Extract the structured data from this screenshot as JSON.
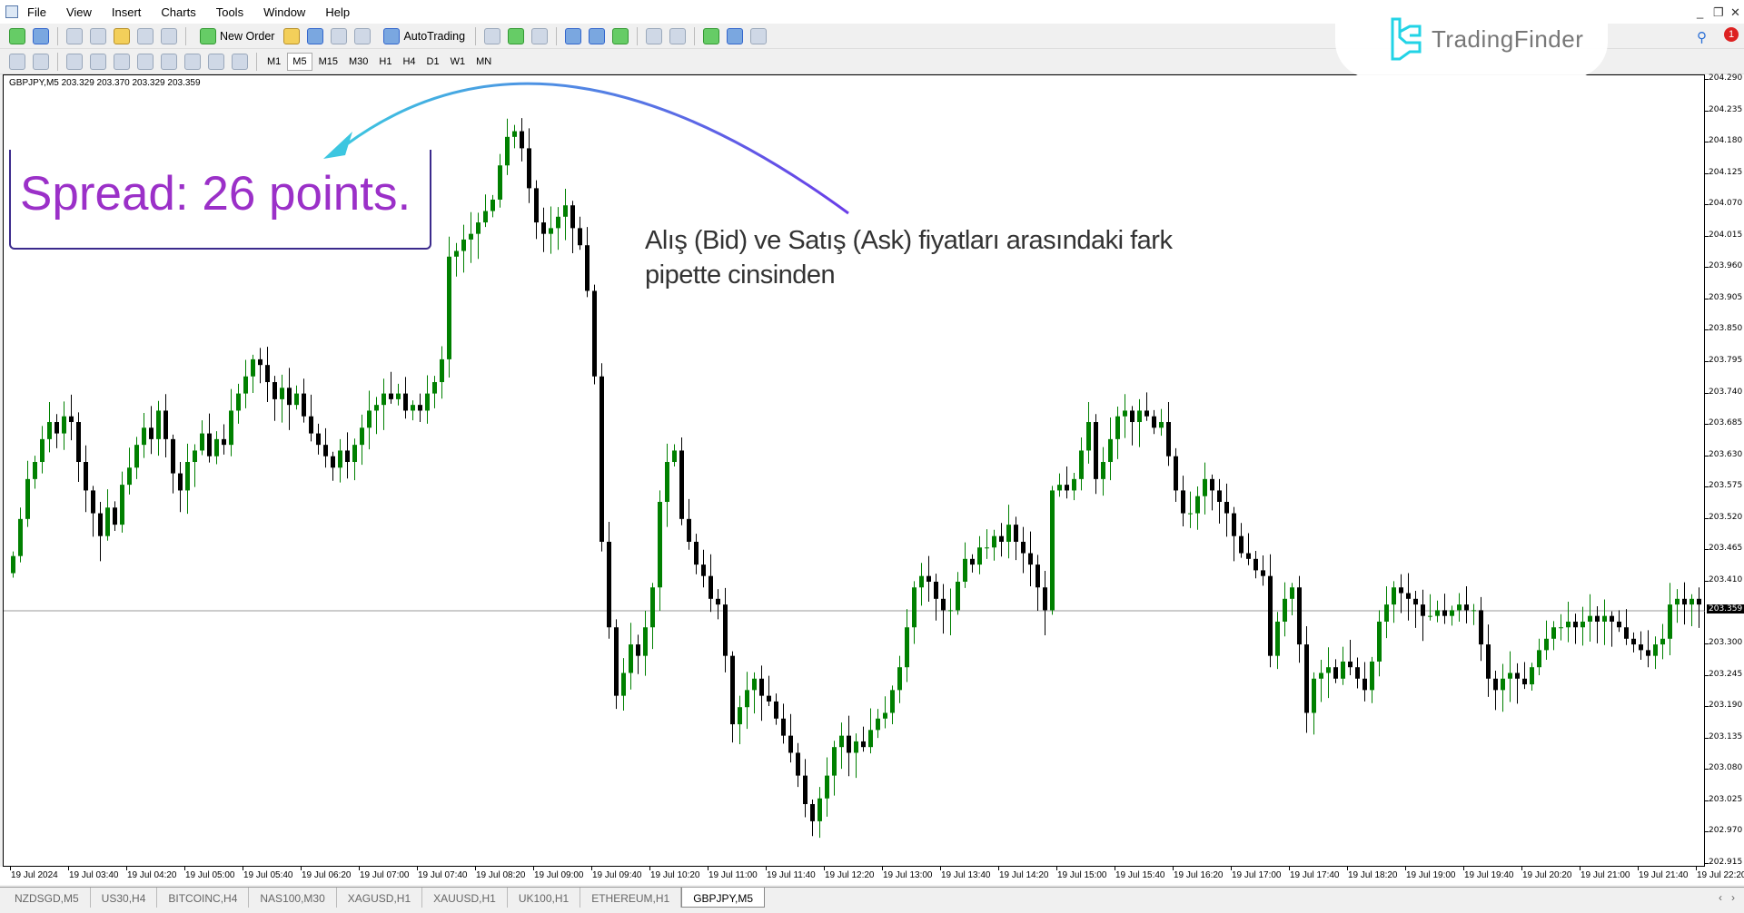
{
  "menu": {
    "items": [
      "File",
      "View",
      "Insert",
      "Charts",
      "Tools",
      "Window",
      "Help"
    ]
  },
  "toolbar": {
    "new_order": "New Order",
    "auto_trading": "AutoTrading",
    "timeframes": [
      "M1",
      "M5",
      "M15",
      "M30",
      "H1",
      "H4",
      "D1",
      "W1",
      "MN"
    ],
    "active_timeframe": "M5"
  },
  "logo": {
    "text": "TradingFinder",
    "color": "#22d3e6"
  },
  "notifications": {
    "count": "1"
  },
  "chart": {
    "info": "GBPJPY,M5  203.329 203.370 203.329 203.359"
  },
  "annotation": {
    "spread": "Spread: 26 points.",
    "note_line1": "Alış (Bid) ve Satış (Ask) fiyatları arasındaki fark",
    "note_line2": "pipette cinsinden",
    "spread_color": "#9b30c8"
  },
  "tabs": [
    {
      "label": "NZDSGD,M5"
    },
    {
      "label": "US30,H4"
    },
    {
      "label": "BITCOINC,H4"
    },
    {
      "label": "NAS100,M30"
    },
    {
      "label": "XAGUSD,H1"
    },
    {
      "label": "XAUUSD,H1"
    },
    {
      "label": "UK100,H1"
    },
    {
      "label": "ETHEREUM,H1"
    },
    {
      "label": "GBPJPY,M5",
      "active": true
    }
  ],
  "chart_data": {
    "type": "candlestick",
    "symbol": "GBPJPY",
    "timeframe": "M5",
    "ylim": [
      202.915,
      204.29
    ],
    "yticks": [
      "204.290",
      "204.235",
      "204.180",
      "204.125",
      "204.070",
      "204.015",
      "203.960",
      "203.905",
      "203.850",
      "203.795",
      "203.740",
      "203.685",
      "203.630",
      "203.575",
      "203.520",
      "203.465",
      "203.410",
      "203.359",
      "203.300",
      "203.245",
      "203.190",
      "203.135",
      "203.080",
      "203.025",
      "202.970",
      "202.915"
    ],
    "current_price": "203.359",
    "xticks": [
      "19 Jul 2024",
      "19 Jul 03:40",
      "19 Jul 04:20",
      "19 Jul 05:00",
      "19 Jul 05:40",
      "19 Jul 06:20",
      "19 Jul 07:00",
      "19 Jul 07:40",
      "19 Jul 08:20",
      "19 Jul 09:00",
      "19 Jul 09:40",
      "19 Jul 10:20",
      "19 Jul 11:00",
      "19 Jul 11:40",
      "19 Jul 12:20",
      "19 Jul 13:00",
      "19 Jul 13:40",
      "19 Jul 14:20",
      "19 Jul 15:00",
      "19 Jul 15:40",
      "19 Jul 16:20",
      "19 Jul 17:00",
      "19 Jul 17:40",
      "19 Jul 18:20",
      "19 Jul 19:00",
      "19 Jul 19:40",
      "19 Jul 20:20",
      "19 Jul 21:00",
      "19 Jul 21:40",
      "19 Jul 22:20"
    ],
    "bull_color": "#008000",
    "bear_color": "#000000",
    "close": [
      203.455,
      203.52,
      203.59,
      203.62,
      203.66,
      203.69,
      203.67,
      203.7,
      203.69,
      203.62,
      203.57,
      203.53,
      203.49,
      203.54,
      203.51,
      203.58,
      203.61,
      203.65,
      203.68,
      203.66,
      203.71,
      203.66,
      203.6,
      203.57,
      203.62,
      203.64,
      203.67,
      203.63,
      203.66,
      203.65,
      203.71,
      203.74,
      203.77,
      203.8,
      203.79,
      203.76,
      203.73,
      203.75,
      203.72,
      203.74,
      203.7,
      203.67,
      203.65,
      203.63,
      203.61,
      203.64,
      203.62,
      203.65,
      203.68,
      203.71,
      203.72,
      203.74,
      203.73,
      203.74,
      203.71,
      203.72,
      203.71,
      203.74,
      203.76,
      203.8,
      203.98,
      203.99,
      204.01,
      204.02,
      204.04,
      204.06,
      204.08,
      204.14,
      204.19,
      204.2,
      204.17,
      204.1,
      204.04,
      204.02,
      204.03,
      204.05,
      204.07,
      204.03,
      204.0,
      203.92,
      203.77,
      203.48,
      203.33,
      203.21,
      203.25,
      203.3,
      203.28,
      203.33,
      203.4,
      203.55,
      203.62,
      203.64,
      203.52,
      203.48,
      203.44,
      203.42,
      203.38,
      203.37,
      203.28,
      203.16,
      203.19,
      203.22,
      203.24,
      203.21,
      203.2,
      203.17,
      203.14,
      203.11,
      203.07,
      203.02,
      202.99,
      203.03,
      203.07,
      203.12,
      203.14,
      203.11,
      203.13,
      203.12,
      203.15,
      203.17,
      203.18,
      203.22,
      203.26,
      203.33,
      203.4,
      203.42,
      203.41,
      203.38,
      203.36,
      203.36,
      203.41,
      203.45,
      203.44,
      203.47,
      203.47,
      203.49,
      203.48,
      203.51,
      203.48,
      203.46,
      203.44,
      203.4,
      203.36,
      203.57,
      203.58,
      203.57,
      203.59,
      203.64,
      203.69,
      203.59,
      203.62,
      203.66,
      203.7,
      203.71,
      203.69,
      203.71,
      203.7,
      203.68,
      203.69,
      203.63,
      203.57,
      203.53,
      203.53,
      203.56,
      203.59,
      203.57,
      203.55,
      203.53,
      203.49,
      203.46,
      203.45,
      203.43,
      203.42,
      203.28,
      203.34,
      203.38,
      203.4,
      203.3,
      203.18,
      203.24,
      203.25,
      203.26,
      203.24,
      203.27,
      203.26,
      203.24,
      203.22,
      203.27,
      203.34,
      203.37,
      203.4,
      203.39,
      203.38,
      203.37,
      203.35,
      203.35,
      203.36,
      203.35,
      203.36,
      203.37,
      203.36,
      203.36,
      203.3,
      203.24,
      203.22,
      203.24,
      203.25,
      203.24,
      203.23,
      203.26,
      203.29,
      203.31,
      203.33,
      203.33,
      203.34,
      203.33,
      203.34,
      203.35,
      203.34,
      203.35,
      203.34,
      203.33,
      203.31,
      203.3,
      203.29,
      203.28,
      203.3,
      203.31,
      203.37,
      203.38,
      203.37,
      203.38,
      203.37,
      203.359
    ]
  }
}
